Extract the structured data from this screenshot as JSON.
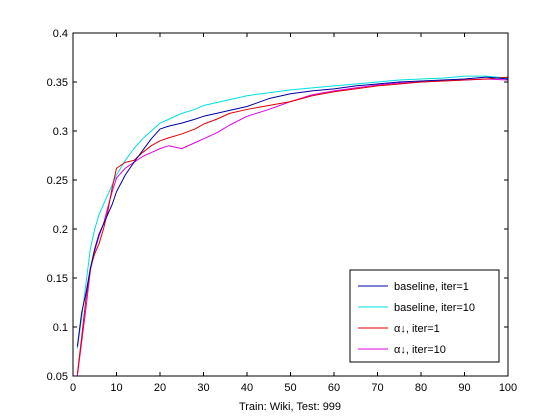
{
  "chart_data": {
    "type": "line",
    "title": "",
    "xlabel": "Train: Wiki, Test: 999",
    "ylabel": "",
    "xlim": [
      0,
      100
    ],
    "ylim": [
      0.05,
      0.4
    ],
    "xticks": [
      0,
      10,
      20,
      30,
      40,
      50,
      60,
      70,
      80,
      90,
      100
    ],
    "yticks": [
      0.05,
      0.1,
      0.15,
      0.2,
      0.25,
      0.3,
      0.35,
      0.4
    ],
    "xtick_labels": [
      "0",
      "10",
      "20",
      "30",
      "40",
      "50",
      "60",
      "70",
      "80",
      "90",
      "100"
    ],
    "ytick_labels": [
      "0.05",
      "0.1",
      "0.15",
      "0.2",
      "0.25",
      "0.3",
      "0.35",
      "0.4"
    ],
    "grid": false,
    "legend_position": "bottom-right",
    "x": [
      1,
      2,
      3,
      4,
      5,
      6,
      7,
      8,
      9,
      10,
      12,
      14,
      16,
      18,
      20,
      22,
      25,
      28,
      30,
      33,
      36,
      40,
      45,
      50,
      55,
      60,
      65,
      70,
      75,
      80,
      85,
      90,
      95,
      100
    ],
    "series": [
      {
        "name": "baseline, iter=1",
        "color": "#0000a0",
        "values": [
          0.08,
          0.115,
          0.135,
          0.16,
          0.18,
          0.195,
          0.205,
          0.215,
          0.225,
          0.238,
          0.255,
          0.268,
          0.28,
          0.292,
          0.302,
          0.305,
          0.308,
          0.312,
          0.315,
          0.318,
          0.321,
          0.325,
          0.333,
          0.338,
          0.341,
          0.343,
          0.346,
          0.348,
          0.35,
          0.351,
          0.352,
          0.353,
          0.355,
          0.353
        ]
      },
      {
        "name": "baseline, iter=10",
        "color": "#00e0e0",
        "values": [
          0.078,
          0.11,
          0.145,
          0.18,
          0.2,
          0.215,
          0.225,
          0.235,
          0.245,
          0.255,
          0.27,
          0.282,
          0.292,
          0.3,
          0.308,
          0.312,
          0.318,
          0.322,
          0.326,
          0.329,
          0.332,
          0.336,
          0.339,
          0.342,
          0.344,
          0.346,
          0.348,
          0.35,
          0.352,
          0.353,
          0.354,
          0.356,
          0.356,
          0.354
        ]
      },
      {
        "name": "α↓, iter=1",
        "color": "#e00000",
        "values": [
          0.052,
          0.09,
          0.13,
          0.16,
          0.175,
          0.185,
          0.2,
          0.218,
          0.242,
          0.262,
          0.268,
          0.27,
          0.278,
          0.285,
          0.29,
          0.293,
          0.297,
          0.302,
          0.307,
          0.312,
          0.318,
          0.322,
          0.326,
          0.33,
          0.336,
          0.34,
          0.343,
          0.346,
          0.348,
          0.35,
          0.351,
          0.352,
          0.353,
          0.355
        ]
      },
      {
        "name": "α↓, iter=10",
        "color": "#e000e0",
        "values": [
          0.05,
          0.085,
          0.12,
          0.158,
          0.178,
          0.193,
          0.205,
          0.222,
          0.238,
          0.252,
          0.262,
          0.268,
          0.274,
          0.278,
          0.282,
          0.285,
          0.282,
          0.288,
          0.292,
          0.298,
          0.306,
          0.315,
          0.322,
          0.33,
          0.337,
          0.341,
          0.344,
          0.347,
          0.349,
          0.35,
          0.351,
          0.352,
          0.353,
          0.352
        ]
      }
    ]
  }
}
